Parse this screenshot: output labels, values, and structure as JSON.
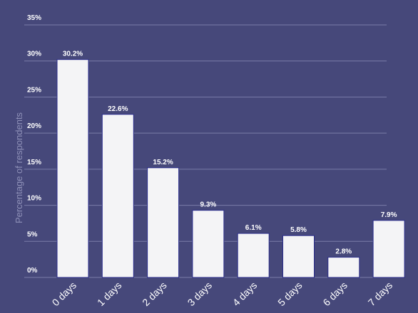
{
  "chart_data": {
    "type": "bar",
    "title": "",
    "xlabel": "",
    "ylabel": "Percentage of respondents",
    "categories": [
      "0 days",
      "1 days",
      "2 days",
      "3 days",
      "4 days",
      "5 days",
      "6 days",
      "7 days"
    ],
    "values": [
      30.2,
      22.6,
      15.2,
      9.3,
      6.1,
      5.8,
      2.8,
      7.9
    ],
    "value_labels": [
      "30.2%",
      "22.6%",
      "15.2%",
      "9.3%",
      "6.1%",
      "5.8%",
      "2.8%",
      "7.9%"
    ],
    "ylim": [
      0,
      35
    ],
    "yticks": [
      0,
      5,
      10,
      15,
      20,
      25,
      30,
      35
    ],
    "ytick_labels": [
      "0%",
      "5%",
      "10%",
      "15%",
      "20%",
      "25%",
      "30%",
      "35%"
    ],
    "grid": true,
    "legend": "none",
    "colors": {
      "background": "#46487a",
      "bar": "#f4f4f6",
      "bar_edge": "#2b2d8c",
      "grid": "#7a7ca8",
      "text": "#ffffff",
      "axis_label": "#8f91b8"
    }
  }
}
